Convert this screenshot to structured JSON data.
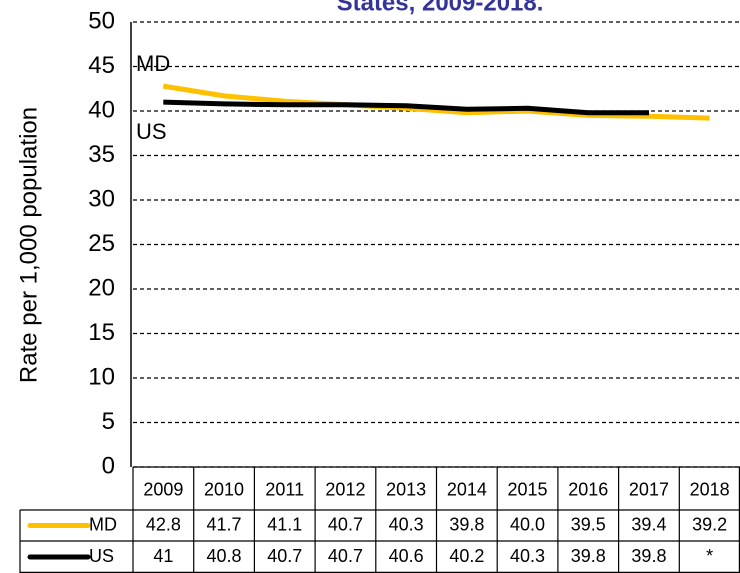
{
  "chart_data": {
    "type": "line",
    "title": "States, 2009-2018.",
    "y_label": "Rate per 1,000 population",
    "categories": [
      "2009",
      "2010",
      "2011",
      "2012",
      "2013",
      "2014",
      "2015",
      "2016",
      "2017",
      "2018"
    ],
    "series": [
      {
        "name": "MD",
        "color": "#FFC000",
        "values": [
          42.8,
          41.7,
          41.1,
          40.7,
          40.3,
          39.8,
          40.0,
          39.5,
          39.4,
          39.2
        ],
        "value_labels": [
          "42.8",
          "41.7",
          "41.1",
          "40.7",
          "40.3",
          "39.8",
          "40.0",
          "39.5",
          "39.4",
          "39.2"
        ]
      },
      {
        "name": "US",
        "color": "#000000",
        "values": [
          41,
          40.8,
          40.7,
          40.7,
          40.6,
          40.2,
          40.3,
          39.8,
          39.8,
          null
        ],
        "value_labels": [
          "41",
          "40.8",
          "40.7",
          "40.7",
          "40.6",
          "40.2",
          "40.3",
          "39.8",
          "39.8",
          "*"
        ]
      }
    ],
    "ylim": [
      0,
      50
    ],
    "yticks": [
      0,
      5,
      10,
      15,
      20,
      25,
      30,
      35,
      40,
      45,
      50
    ],
    "grid": true
  }
}
